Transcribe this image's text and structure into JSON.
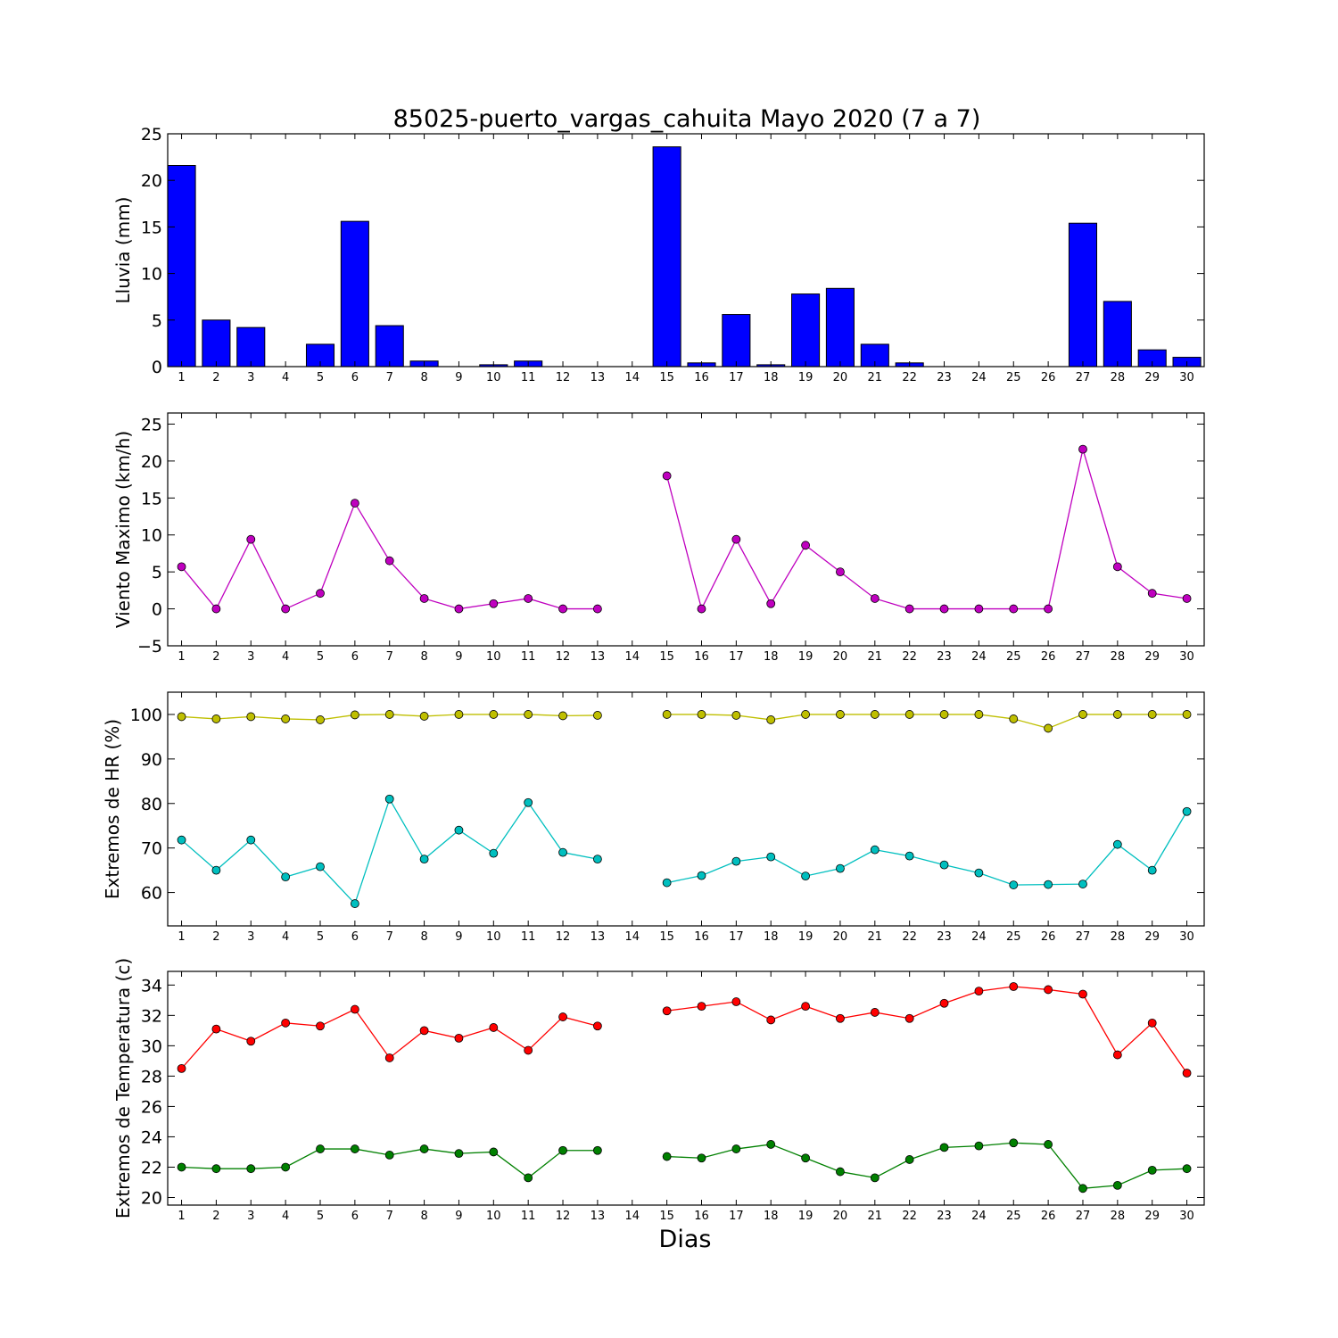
{
  "figure": {
    "title": "85025-puerto_vargas_cahuita Mayo 2020  (7 a 7)",
    "xlabel": "Dias"
  },
  "chart_data": [
    {
      "type": "bar",
      "ylabel": "Lluvia (mm)",
      "xlim": [
        0.6,
        30.5
      ],
      "ylim": [
        0,
        25
      ],
      "yticks": [
        0,
        5,
        10,
        15,
        20,
        25
      ],
      "xticks": [
        1,
        2,
        3,
        4,
        5,
        6,
        7,
        8,
        9,
        10,
        11,
        12,
        13,
        14,
        15,
        16,
        17,
        18,
        19,
        20,
        21,
        22,
        23,
        24,
        25,
        26,
        27,
        28,
        29,
        30
      ],
      "series": [
        {
          "color": "#0000ff",
          "values": [
            21.6,
            5.0,
            4.2,
            0,
            2.4,
            15.6,
            4.4,
            0.6,
            0,
            0.2,
            0.6,
            0,
            0,
            0,
            23.6,
            0.4,
            5.6,
            0.2,
            7.8,
            8.4,
            2.4,
            0.4,
            0,
            0,
            0,
            0,
            15.4,
            7.0,
            1.8,
            1.0
          ]
        }
      ]
    },
    {
      "type": "line",
      "ylabel": "Viento Maximo (km/h)",
      "xlim": [
        0.6,
        30.5
      ],
      "ylim": [
        -5,
        26.5
      ],
      "yticks": [
        -5,
        0,
        5,
        10,
        15,
        20,
        25
      ],
      "xticks": [
        1,
        2,
        3,
        4,
        5,
        6,
        7,
        8,
        9,
        10,
        11,
        12,
        13,
        14,
        15,
        16,
        17,
        18,
        19,
        20,
        21,
        22,
        23,
        24,
        25,
        26,
        27,
        28,
        29,
        30
      ],
      "series": [
        {
          "color": "#bf00bf",
          "values": [
            5.7,
            0,
            9.4,
            0,
            2.1,
            14.3,
            6.5,
            1.4,
            0,
            0.7,
            1.4,
            0,
            0,
            null,
            18.0,
            0,
            9.4,
            0.7,
            8.6,
            5.0,
            1.4,
            0,
            0,
            0,
            0,
            0,
            21.6,
            5.7,
            2.1,
            1.4
          ]
        }
      ]
    },
    {
      "type": "line",
      "ylabel": "Extremos de HR (%)",
      "xlim": [
        0.6,
        30.5
      ],
      "ylim": [
        52.5,
        105
      ],
      "yticks": [
        60,
        70,
        80,
        90,
        100
      ],
      "xticks": [
        1,
        2,
        3,
        4,
        5,
        6,
        7,
        8,
        9,
        10,
        11,
        12,
        13,
        14,
        15,
        16,
        17,
        18,
        19,
        20,
        21,
        22,
        23,
        24,
        25,
        26,
        27,
        28,
        29,
        30
      ],
      "series": [
        {
          "color": "#bfbf00",
          "values": [
            99.5,
            99,
            99.5,
            99,
            98.8,
            99.9,
            100,
            99.6,
            100,
            100,
            100,
            99.7,
            99.8,
            null,
            100,
            100,
            99.8,
            98.8,
            100,
            100,
            100,
            100,
            100,
            100,
            99,
            96.9,
            100,
            100,
            100,
            100
          ]
        },
        {
          "color": "#00bfbf",
          "values": [
            71.8,
            65,
            71.8,
            63.5,
            65.8,
            57.5,
            81,
            67.5,
            74,
            68.8,
            80.2,
            69,
            67.5,
            null,
            62.2,
            63.8,
            67,
            68,
            63.7,
            65.4,
            69.6,
            68.2,
            66.2,
            64.4,
            61.7,
            61.8,
            61.9,
            70.8,
            65,
            78.2
          ]
        }
      ]
    },
    {
      "type": "line",
      "ylabel": "Extremos de Temperatura (c)",
      "xlim": [
        0.6,
        30.5
      ],
      "ylim": [
        19.5,
        34.9
      ],
      "yticks": [
        20,
        22,
        24,
        26,
        28,
        30,
        32,
        34
      ],
      "xticks": [
        1,
        2,
        3,
        4,
        5,
        6,
        7,
        8,
        9,
        10,
        11,
        12,
        13,
        14,
        15,
        16,
        17,
        18,
        19,
        20,
        21,
        22,
        23,
        24,
        25,
        26,
        27,
        28,
        29,
        30
      ],
      "series": [
        {
          "color": "#ff0000",
          "values": [
            28.5,
            31.1,
            30.3,
            31.5,
            31.3,
            32.4,
            29.2,
            31.0,
            30.5,
            31.2,
            29.7,
            31.9,
            31.3,
            null,
            32.3,
            32.6,
            32.9,
            31.7,
            32.6,
            31.8,
            32.2,
            31.8,
            32.8,
            33.6,
            33.9,
            33.7,
            33.4,
            29.4,
            31.5,
            28.2
          ]
        },
        {
          "color": "#008000",
          "values": [
            22.0,
            21.9,
            21.9,
            22.0,
            23.2,
            23.2,
            22.8,
            23.2,
            22.9,
            23.0,
            21.3,
            23.1,
            23.1,
            null,
            22.7,
            22.6,
            23.2,
            23.5,
            22.6,
            21.7,
            21.3,
            22.5,
            23.3,
            23.4,
            23.6,
            23.5,
            20.6,
            20.8,
            21.8,
            21.9
          ]
        }
      ]
    }
  ]
}
